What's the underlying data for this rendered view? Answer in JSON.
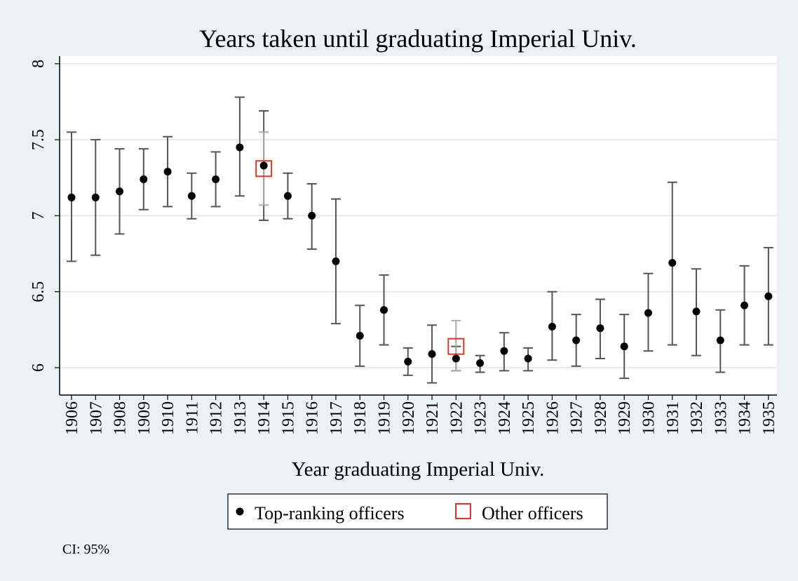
{
  "chart_data": {
    "type": "scatter",
    "title": "Years taken until graduating Imperial Univ.",
    "xlabel": "Year graduating Imperial Univ.",
    "ylabel": "",
    "ylim": [
      5.82,
      8.05
    ],
    "yticks": [
      6,
      6.5,
      7,
      7.5,
      8
    ],
    "ytick_labels": [
      "6",
      "6.5",
      "7",
      "7.5",
      "8"
    ],
    "grid": true,
    "legend_position": "bottom-center",
    "categories": [
      "1906",
      "1907",
      "1908",
      "1909",
      "1910",
      "1911",
      "1912",
      "1913",
      "1914",
      "1915",
      "1916",
      "1917",
      "1918",
      "1919",
      "1920",
      "1921",
      "1922",
      "1923",
      "1924",
      "1925",
      "1926",
      "1927",
      "1928",
      "1929",
      "1930",
      "1931",
      "1932",
      "1933",
      "1934",
      "1935"
    ],
    "series": [
      {
        "name": "Top-ranking officers",
        "marker": "filled-circle",
        "color": "#000000",
        "ci_color": "#555555",
        "points": [
          {
            "x": 1906,
            "y": 7.12,
            "lo": 6.7,
            "hi": 7.55
          },
          {
            "x": 1907,
            "y": 7.12,
            "lo": 6.74,
            "hi": 7.5
          },
          {
            "x": 1908,
            "y": 7.16,
            "lo": 6.88,
            "hi": 7.44
          },
          {
            "x": 1909,
            "y": 7.24,
            "lo": 7.04,
            "hi": 7.44
          },
          {
            "x": 1910,
            "y": 7.29,
            "lo": 7.06,
            "hi": 7.52
          },
          {
            "x": 1911,
            "y": 7.13,
            "lo": 6.98,
            "hi": 7.28
          },
          {
            "x": 1912,
            "y": 7.24,
            "lo": 7.06,
            "hi": 7.42
          },
          {
            "x": 1913,
            "y": 7.45,
            "lo": 7.13,
            "hi": 7.78
          },
          {
            "x": 1914,
            "y": 7.33,
            "lo": 6.97,
            "hi": 7.69
          },
          {
            "x": 1915,
            "y": 7.13,
            "lo": 6.98,
            "hi": 7.28
          },
          {
            "x": 1916,
            "y": 7.0,
            "lo": 6.78,
            "hi": 7.21
          },
          {
            "x": 1917,
            "y": 6.7,
            "lo": 6.29,
            "hi": 7.11
          },
          {
            "x": 1918,
            "y": 6.21,
            "lo": 6.01,
            "hi": 6.41
          },
          {
            "x": 1919,
            "y": 6.38,
            "lo": 6.15,
            "hi": 6.61
          },
          {
            "x": 1920,
            "y": 6.04,
            "lo": 5.95,
            "hi": 6.13
          },
          {
            "x": 1921,
            "y": 6.09,
            "lo": 5.9,
            "hi": 6.28
          },
          {
            "x": 1922,
            "y": 6.06,
            "lo": 5.98,
            "hi": 6.14
          },
          {
            "x": 1923,
            "y": 6.03,
            "lo": 5.97,
            "hi": 6.08
          },
          {
            "x": 1924,
            "y": 6.11,
            "lo": 5.98,
            "hi": 6.23
          },
          {
            "x": 1925,
            "y": 6.06,
            "lo": 5.98,
            "hi": 6.13
          },
          {
            "x": 1926,
            "y": 6.27,
            "lo": 6.05,
            "hi": 6.5
          },
          {
            "x": 1927,
            "y": 6.18,
            "lo": 6.01,
            "hi": 6.35
          },
          {
            "x": 1928,
            "y": 6.26,
            "lo": 6.06,
            "hi": 6.45
          },
          {
            "x": 1929,
            "y": 6.14,
            "lo": 5.93,
            "hi": 6.35
          },
          {
            "x": 1930,
            "y": 6.36,
            "lo": 6.11,
            "hi": 6.62
          },
          {
            "x": 1931,
            "y": 6.69,
            "lo": 6.15,
            "hi": 7.22
          },
          {
            "x": 1932,
            "y": 6.37,
            "lo": 6.08,
            "hi": 6.65
          },
          {
            "x": 1933,
            "y": 6.18,
            "lo": 5.97,
            "hi": 6.38
          },
          {
            "x": 1934,
            "y": 6.41,
            "lo": 6.15,
            "hi": 6.67
          },
          {
            "x": 1935,
            "y": 6.47,
            "lo": 6.15,
            "hi": 6.79
          }
        ]
      },
      {
        "name": "Other officers",
        "marker": "hollow-square",
        "color": "#d7372c",
        "ci_color": "#aaaaaa",
        "points": [
          {
            "x": 1914,
            "y": 7.31,
            "lo": 7.07,
            "hi": 7.55
          },
          {
            "x": 1922,
            "y": 6.14,
            "lo": 5.98,
            "hi": 6.31
          }
        ]
      }
    ],
    "note": "CI: 95%"
  }
}
